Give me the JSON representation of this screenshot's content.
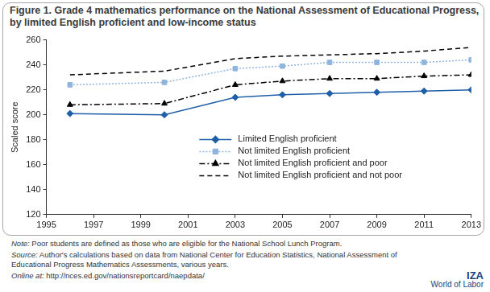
{
  "chart_data": {
    "type": "line",
    "title": "Figure 1. Grade 4 mathematics performance on the National Assessment of Educational Progress, by limited English proficient and low-income status",
    "y_label": "Scaled score",
    "x": [
      1996,
      2000,
      2003,
      2005,
      2007,
      2009,
      2011,
      2013
    ],
    "series": [
      {
        "name": "Limited English proficient",
        "color": "#1f5fa8",
        "marker": "diamond",
        "line_style": "solid",
        "values": [
          201,
          200,
          214,
          216,
          217,
          218,
          219,
          220
        ]
      },
      {
        "name": "Not limited English proficient",
        "color": "#8fb4de",
        "marker": "square",
        "line_style": "dotted",
        "values": [
          224,
          226,
          237,
          239,
          242,
          242,
          242,
          244
        ]
      },
      {
        "name": "Not limited English proficient and poor",
        "color": "#000000",
        "marker": "triangle",
        "line_style": "dashdot",
        "values": [
          208,
          209,
          224,
          227,
          229,
          229,
          231,
          232
        ]
      },
      {
        "name": "Not limited English proficient and not poor",
        "color": "#000000",
        "marker": "none",
        "line_style": "dashed",
        "values": [
          232,
          235,
          245,
          247,
          248,
          249,
          251,
          254
        ]
      }
    ],
    "xlim": [
      1995,
      2013
    ],
    "xticks": [
      1995,
      1997,
      1999,
      2001,
      2003,
      2005,
      2007,
      2009,
      2011,
      2013
    ],
    "ylim": [
      120,
      260
    ],
    "yticks": [
      120,
      140,
      160,
      180,
      200,
      220,
      240,
      260
    ],
    "grid": false,
    "legend": "lower-right",
    "annotations": [
      "Note: Poor students are defined as those who are eligible for the National School Lunch Program.",
      "Source: Author's calculations based on data from National Center for Education Statistics, National Assessment of Educational Progress Mathematics Assessments, various years.",
      "Online at: http://nces.ed.gov/nationsreportcard/naepdata/",
      "IZA",
      "World of Labor"
    ]
  }
}
